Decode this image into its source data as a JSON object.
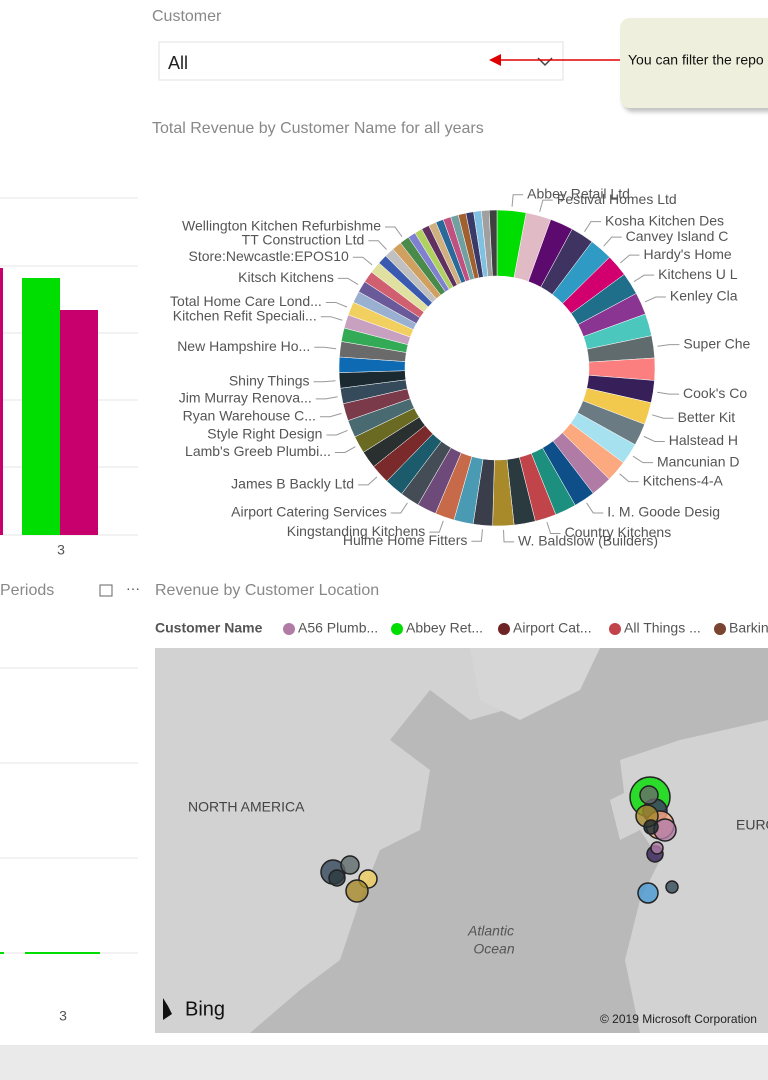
{
  "left_bar_chart": {
    "x_label": "3"
  },
  "left_line_chart": {
    "title": "Periods",
    "x_label": "3"
  },
  "slicer": {
    "label": "Customer",
    "value": "All"
  },
  "callout": {
    "text": "You can filter the repo"
  },
  "donut": {
    "type": "pie",
    "title": "Total Revenue by Customer Name for all years",
    "categories": [
      "Abbey Retail Ltd",
      "Festival Homes Ltd",
      null,
      "Kosha Kitchen Des",
      "Canvey Island C",
      "Hardy's Home",
      "Kitchens U L",
      "Kenley Cla",
      null,
      "Super Che",
      null,
      "Cook's Co",
      "Better Kit",
      "Halstead H",
      "Mancunian D",
      "Kitchens-4-A",
      null,
      "I. M. Goode Desig",
      null,
      "Country Kitchens",
      null,
      "W. Baldslow (Builders)",
      "Hulme Home Fitters",
      null,
      "Kingstanding Kitchens",
      null,
      "Airport Catering Services",
      null,
      "James B Backly Ltd",
      null,
      "Lamb's Greeb Plumbi...",
      "Style Right Design",
      "Ryan Warehouse C...",
      "Jim Murray Renova...",
      "Shiny Things",
      null,
      "New Hampshire Ho...",
      null,
      "Kitchen Refit Speciali...",
      "Total Home Care Lond...",
      null,
      "Kitsch Kitchens",
      null,
      "Store:Newcastle:EPOS10",
      null,
      "TT Construction Ltd",
      null,
      "Wellington Kitchen Refurbishme",
      null,
      null,
      null,
      null,
      null,
      null,
      null,
      null,
      null,
      null,
      null,
      null
    ],
    "values": [
      3.0,
      2.6,
      2.4,
      2.4,
      2.4,
      2.3,
      2.3,
      2.3,
      2.3,
      2.3,
      2.3,
      2.3,
      2.3,
      2.3,
      2.2,
      2.2,
      2.2,
      2.2,
      2.2,
      2.2,
      2.2,
      2.2,
      2.0,
      2.0,
      2.0,
      2.0,
      2.0,
      2.0,
      2.0,
      1.8,
      1.8,
      1.8,
      1.8,
      1.6,
      1.6,
      1.6,
      1.6,
      1.4,
      1.4,
      1.4,
      1.2,
      1.2,
      1.2,
      1.2,
      1.0,
      1.0,
      1.0,
      1.0,
      0.8,
      0.8,
      0.8,
      0.8,
      0.8,
      0.8,
      0.8,
      0.8,
      0.8,
      0.8,
      0.8,
      0.8
    ],
    "colors": [
      "#00dd00",
      "#e0bac4",
      "#5c0a6e",
      "#3f3461",
      "#2f9ac3",
      "#d1006e",
      "#1f6f8b",
      "#8a3591",
      "#4cc7bd",
      "#5f6b6d",
      "#fc7f7f",
      "#37205a",
      "#f2c94c",
      "#6b7b83",
      "#a6e1ef",
      "#fca980",
      "#b07ca6",
      "#0e4f8a",
      "#1d8f7e",
      "#c0444a",
      "#2b3a3f",
      "#a88a2a",
      "#3a3d4a",
      "#4a9ab3",
      "#c66a4a",
      "#6e4a7a",
      "#444d55",
      "#1b5b6b",
      "#7a2a2a",
      "#2a3030",
      "#6a6a22",
      "#4a6a72",
      "#7a3a4a",
      "#354a5a",
      "#1a2a30",
      "#0e6ab3",
      "#6a6a6a",
      "#33aa55",
      "#c8a0c0",
      "#f2d060",
      "#9ab0d0",
      "#6a5a9a",
      "#d06070",
      "#e0e0a0",
      "#3a5ab0",
      "#c0c0c0",
      "#d0a060",
      "#4a8a4a",
      "#8080d0",
      "#b0d060",
      "#603060",
      "#d0b080",
      "#2a6a9a",
      "#c05080",
      "#70a0a0",
      "#a06030",
      "#3a3a6a",
      "#80c0e0",
      "#a0a0a0",
      "#404040"
    ]
  },
  "map": {
    "title": "Revenue by Customer Location",
    "legend_title": "Customer Name",
    "legend": [
      "A56 Plumb...",
      "Abbey Ret...",
      "Airport Cat...",
      "All Things ...",
      "Barkin"
    ],
    "labels": {
      "north_america": "NORTH AMERICA",
      "europe": "EURO",
      "ocean_1": "Atlantic",
      "ocean_2": "Ocean",
      "bing": "Bing",
      "copyright": "© 2019 Microsoft Corporation"
    }
  }
}
